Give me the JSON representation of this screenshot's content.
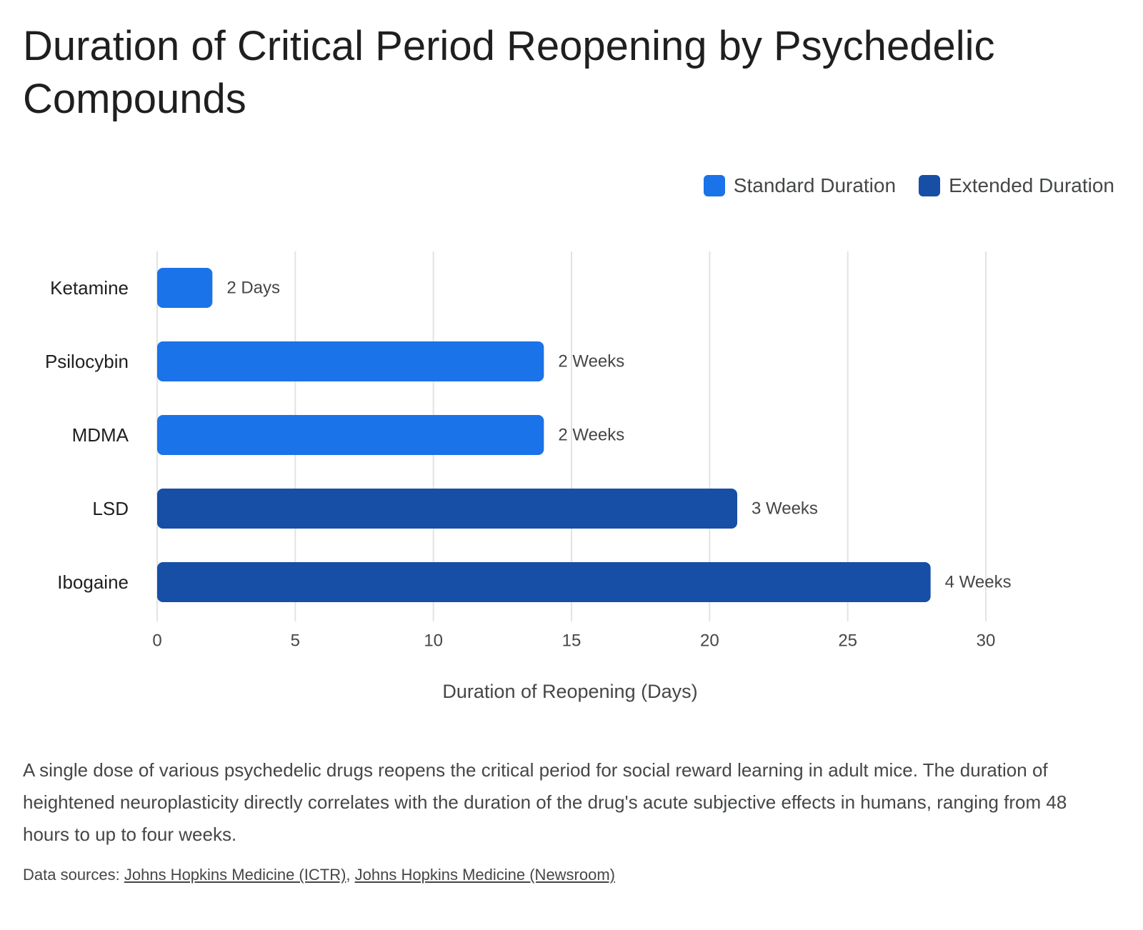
{
  "title": "Duration of Critical Period Reopening by Psychedelic Compounds",
  "legend": [
    {
      "label": "Standard Duration",
      "color": "#1a73e8"
    },
    {
      "label": "Extended Duration",
      "color": "#174ea6"
    }
  ],
  "chart_data": {
    "type": "bar",
    "orientation": "horizontal",
    "categories": [
      "Ketamine",
      "Psilocybin",
      "MDMA",
      "LSD",
      "Ibogaine"
    ],
    "values": [
      2,
      14,
      14,
      21,
      28
    ],
    "data_labels": [
      "2 Days",
      "2 Weeks",
      "2 Weeks",
      "3 Weeks",
      "4 Weeks"
    ],
    "groups": [
      "Standard Duration",
      "Standard Duration",
      "Standard Duration",
      "Extended Duration",
      "Extended Duration"
    ],
    "xlabel": "Duration of Reopening (Days)",
    "ylabel": "",
    "xlim": [
      0,
      30
    ],
    "x_ticks": [
      0,
      5,
      10,
      15,
      20,
      25,
      30
    ],
    "grid": true,
    "legend_position": "top-right"
  },
  "description": "A single dose of various psychedelic drugs reopens the critical period for social reward learning in adult mice. The duration of heightened neuroplasticity directly correlates with the duration of the drug's acute subjective effects in humans, ranging from 48 hours to up to four weeks.",
  "sources": {
    "prefix": "Data sources:",
    "links": [
      "Johns Hopkins Medicine (ICTR)",
      "Johns Hopkins Medicine (Newsroom)"
    ],
    "separator": ","
  }
}
